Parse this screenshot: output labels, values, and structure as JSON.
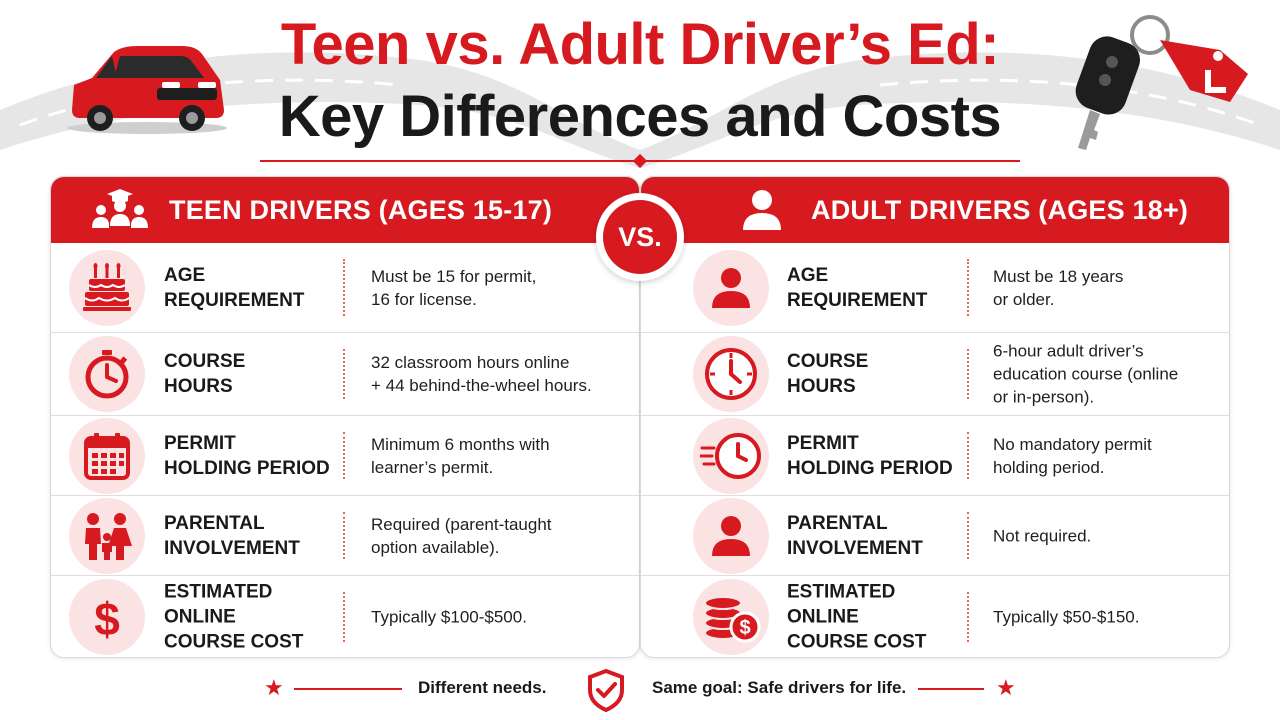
{
  "title": {
    "line1": "Teen vs. Adult Driver’s Ed:",
    "line2": "Key Differences and Costs"
  },
  "vs_label": "VS.",
  "colors": {
    "accent": "#d71920",
    "icon_bg": "#fbe3e3",
    "text": "#1a1a1a"
  },
  "teen": {
    "header": "TEEN DRIVERS (AGES 15-17)",
    "header_icon": "graduation-family-icon",
    "rows": [
      {
        "icon": "birthday-cake-icon",
        "label_line1": "AGE",
        "label_line2": "REQUIREMENT",
        "value_line1": "Must be 15 for permit,",
        "value_line2": "16 for license.",
        "value_line3": ""
      },
      {
        "icon": "stopwatch-icon",
        "label_line1": "COURSE",
        "label_line2": "HOURS",
        "value_line1": "32 classroom hours online",
        "value_line2": "+ 44 behind-the-wheel hours.",
        "value_line3": ""
      },
      {
        "icon": "calendar-icon",
        "label_line1": "PERMIT",
        "label_line2": "HOLDING PERIOD",
        "value_line1": "Minimum 6 months with",
        "value_line2": "learner’s permit.",
        "value_line3": ""
      },
      {
        "icon": "family-icon",
        "label_line1": "PARENTAL",
        "label_line2": "INVOLVEMENT",
        "value_line1": "Required (parent-taught",
        "value_line2": "option available).",
        "value_line3": ""
      },
      {
        "icon": "dollar-icon",
        "label_line1": "ESTIMATED ONLINE",
        "label_line2": "COURSE COST",
        "value_line1": "Typically $100-$500.",
        "value_line2": "",
        "value_line3": ""
      }
    ]
  },
  "adult": {
    "header": "ADULT DRIVERS (AGES 18+)",
    "header_icon": "person-icon",
    "rows": [
      {
        "icon": "person-icon",
        "label_line1": "AGE",
        "label_line2": "REQUIREMENT",
        "value_line1": "Must be 18 years",
        "value_line2": "or older.",
        "value_line3": ""
      },
      {
        "icon": "clock-icon",
        "label_line1": "COURSE",
        "label_line2": "HOURS",
        "value_line1": "6-hour adult driver’s",
        "value_line2": "education course (online",
        "value_line3": "or in-person)."
      },
      {
        "icon": "fast-clock-icon",
        "label_line1": "PERMIT",
        "label_line2": "HOLDING PERIOD",
        "value_line1": "No mandatory permit",
        "value_line2": "holding period.",
        "value_line3": ""
      },
      {
        "icon": "person-icon",
        "label_line1": "PARENTAL",
        "label_line2": "INVOLVEMENT",
        "value_line1": "Not required.",
        "value_line2": "",
        "value_line3": ""
      },
      {
        "icon": "coins-dollar-icon",
        "label_line1": "ESTIMATED ONLINE",
        "label_line2": "COURSE COST",
        "value_line1": "Typically $50-$150.",
        "value_line2": "",
        "value_line3": ""
      }
    ]
  },
  "footer": {
    "left": "Different needs.",
    "right": "Same goal: Safe drivers for life.",
    "shield_icon": "shield-check-icon",
    "star_icon": "star-icon"
  }
}
